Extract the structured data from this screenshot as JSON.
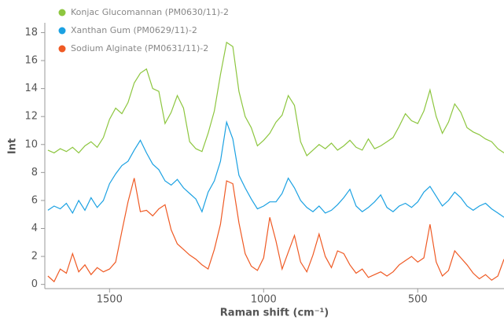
{
  "chart_data": {
    "type": "line",
    "xlabel": "Raman shift (cm⁻¹)",
    "ylabel": "Int",
    "xlim": [
      1710,
      220
    ],
    "ylim": [
      -0.3,
      18.7
    ],
    "xticks": [
      1500,
      1000,
      500
    ],
    "yticks": [
      0,
      2,
      4,
      6,
      8,
      10,
      12,
      14,
      16,
      18
    ],
    "x": [
      1700,
      1680,
      1660,
      1640,
      1620,
      1600,
      1580,
      1560,
      1540,
      1520,
      1500,
      1480,
      1460,
      1440,
      1420,
      1400,
      1380,
      1360,
      1340,
      1320,
      1300,
      1280,
      1260,
      1240,
      1220,
      1200,
      1180,
      1160,
      1140,
      1120,
      1100,
      1080,
      1060,
      1040,
      1020,
      1000,
      980,
      960,
      940,
      920,
      900,
      880,
      860,
      840,
      820,
      800,
      780,
      760,
      740,
      720,
      700,
      680,
      660,
      640,
      620,
      600,
      580,
      560,
      540,
      520,
      500,
      480,
      460,
      440,
      420,
      400,
      380,
      360,
      340,
      320,
      300,
      280,
      260,
      240,
      220
    ],
    "series": [
      {
        "name": "Konjac Glucomannan (PM0630/11)-2",
        "color": "#8dc63f",
        "values": [
          9.6,
          9.4,
          9.7,
          9.5,
          9.8,
          9.4,
          9.9,
          10.2,
          9.8,
          10.5,
          11.8,
          12.6,
          12.2,
          13.0,
          14.4,
          15.1,
          15.4,
          14.0,
          13.8,
          11.5,
          12.3,
          13.5,
          12.6,
          10.2,
          9.7,
          9.5,
          10.8,
          12.4,
          15.0,
          17.3,
          17.0,
          13.8,
          12.0,
          11.2,
          9.9,
          10.3,
          10.8,
          11.6,
          12.1,
          13.5,
          12.8,
          10.2,
          9.2,
          9.6,
          10.0,
          9.7,
          10.1,
          9.6,
          9.9,
          10.3,
          9.8,
          9.6,
          10.4,
          9.7,
          9.9,
          10.2,
          10.5,
          11.3,
          12.2,
          11.7,
          11.5,
          12.4,
          13.9,
          12.0,
          10.8,
          11.6,
          12.9,
          12.3,
          11.2,
          10.9,
          10.7,
          10.4,
          10.2,
          9.7,
          9.4
        ]
      },
      {
        "name": "Xanthan Gum (PM0629/11)-2",
        "color": "#1ba1e2",
        "values": [
          5.3,
          5.6,
          5.4,
          5.8,
          5.1,
          6.0,
          5.3,
          6.2,
          5.5,
          6.0,
          7.2,
          7.9,
          8.5,
          8.8,
          9.6,
          10.3,
          9.4,
          8.6,
          8.2,
          7.4,
          7.1,
          7.5,
          6.9,
          6.5,
          6.1,
          5.2,
          6.6,
          7.4,
          8.8,
          11.6,
          10.4,
          7.8,
          6.9,
          6.1,
          5.4,
          5.6,
          5.9,
          5.9,
          6.5,
          7.6,
          6.9,
          6.0,
          5.5,
          5.2,
          5.6,
          5.1,
          5.3,
          5.7,
          6.2,
          6.8,
          5.6,
          5.2,
          5.5,
          5.9,
          6.4,
          5.5,
          5.2,
          5.6,
          5.8,
          5.5,
          5.9,
          6.6,
          7.0,
          6.3,
          5.6,
          6.0,
          6.6,
          6.2,
          5.6,
          5.3,
          5.6,
          5.8,
          5.4,
          5.1,
          4.8
        ]
      },
      {
        "name": "Sodium Alginate (PM0631/11)-2",
        "color": "#ef5a24",
        "values": [
          0.6,
          0.2,
          1.1,
          0.8,
          2.2,
          0.9,
          1.4,
          0.7,
          1.2,
          0.9,
          1.1,
          1.6,
          3.8,
          5.9,
          7.6,
          5.2,
          5.3,
          4.9,
          5.4,
          5.7,
          3.9,
          2.9,
          2.5,
          2.1,
          1.8,
          1.4,
          1.1,
          2.5,
          4.3,
          7.4,
          7.2,
          4.4,
          2.2,
          1.3,
          1.0,
          1.9,
          4.8,
          3.1,
          1.1,
          2.3,
          3.5,
          1.6,
          0.9,
          2.1,
          3.6,
          2.0,
          1.2,
          2.4,
          2.2,
          1.4,
          0.8,
          1.1,
          0.5,
          0.7,
          0.9,
          0.6,
          0.9,
          1.4,
          1.7,
          2.0,
          1.6,
          1.9,
          4.3,
          1.6,
          0.6,
          1.0,
          2.4,
          1.9,
          1.4,
          0.8,
          0.4,
          0.7,
          0.3,
          0.6,
          1.8
        ]
      }
    ]
  }
}
